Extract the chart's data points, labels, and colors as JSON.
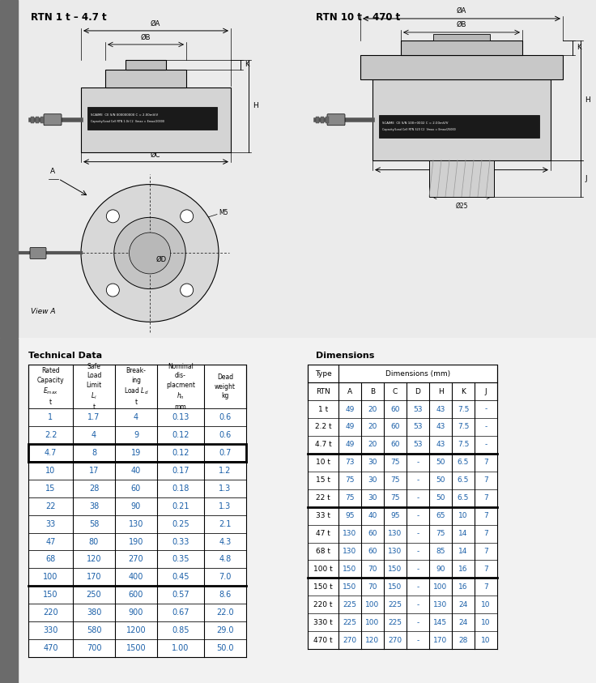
{
  "title_left": "RTN 1 t – 4.7 t",
  "title_right": "RTN 10 t - 470 t",
  "bg_color": "#e8e8e8",
  "diagram_bg": "#e0e0e0",
  "white": "#ffffff",
  "blue_text": "#1a5fa8",
  "dark_text": "#1a1a1a",
  "gray_sidebar": "#6b6b6b",
  "table1_title": "Technical Data",
  "table2_title": "Dimensions",
  "table1_data": [
    [
      "1",
      "1.7",
      "4",
      "0.13",
      "0.6"
    ],
    [
      "2.2",
      "4",
      "9",
      "0.12",
      "0.6"
    ],
    [
      "4.7",
      "8",
      "19",
      "0.12",
      "0.7"
    ],
    [
      "10",
      "17",
      "40",
      "0.17",
      "1.2"
    ],
    [
      "15",
      "28",
      "60",
      "0.18",
      "1.3"
    ],
    [
      "22",
      "38",
      "90",
      "0.21",
      "1.3"
    ],
    [
      "33",
      "58",
      "130",
      "0.25",
      "2.1"
    ],
    [
      "47",
      "80",
      "190",
      "0.33",
      "4.3"
    ],
    [
      "68",
      "120",
      "270",
      "0.35",
      "4.8"
    ],
    [
      "100",
      "170",
      "400",
      "0.45",
      "7.0"
    ],
    [
      "150",
      "250",
      "600",
      "0.57",
      "8.6"
    ],
    [
      "220",
      "380",
      "900",
      "0.67",
      "22.0"
    ],
    [
      "330",
      "580",
      "1200",
      "0.85",
      "29.0"
    ],
    [
      "470",
      "700",
      "1500",
      "1.00",
      "50.0"
    ]
  ],
  "thick_rows_t1": [
    2,
    9
  ],
  "table2_data": [
    [
      "1 t",
      "49",
      "20",
      "60",
      "53",
      "43",
      "7.5",
      "-"
    ],
    [
      "2.2 t",
      "49",
      "20",
      "60",
      "53",
      "43",
      "7.5",
      "-"
    ],
    [
      "4.7 t",
      "49",
      "20",
      "60",
      "53",
      "43",
      "7.5",
      "-"
    ],
    [
      "10 t",
      "73",
      "30",
      "75",
      "-",
      "50",
      "6.5",
      "7"
    ],
    [
      "15 t",
      "75",
      "30",
      "75",
      "-",
      "50",
      "6.5",
      "7"
    ],
    [
      "22 t",
      "75",
      "30",
      "75",
      "-",
      "50",
      "6.5",
      "7"
    ],
    [
      "33 t",
      "95",
      "40",
      "95",
      "-",
      "65",
      "10",
      "7"
    ],
    [
      "47 t",
      "130",
      "60",
      "130",
      "-",
      "75",
      "14",
      "7"
    ],
    [
      "68 t",
      "130",
      "60",
      "130",
      "-",
      "85",
      "14",
      "7"
    ],
    [
      "100 t",
      "150",
      "70",
      "150",
      "-",
      "90",
      "16",
      "7"
    ],
    [
      "150 t",
      "150",
      "70",
      "150",
      "-",
      "100",
      "16",
      "7"
    ],
    [
      "220 t",
      "225",
      "100",
      "225",
      "-",
      "130",
      "24",
      "10"
    ],
    [
      "330 t",
      "225",
      "100",
      "225",
      "-",
      "145",
      "24",
      "10"
    ],
    [
      "470 t",
      "270",
      "120",
      "270",
      "-",
      "170",
      "28",
      "10"
    ]
  ],
  "thick_rows_t2": [
    2,
    5,
    9
  ]
}
